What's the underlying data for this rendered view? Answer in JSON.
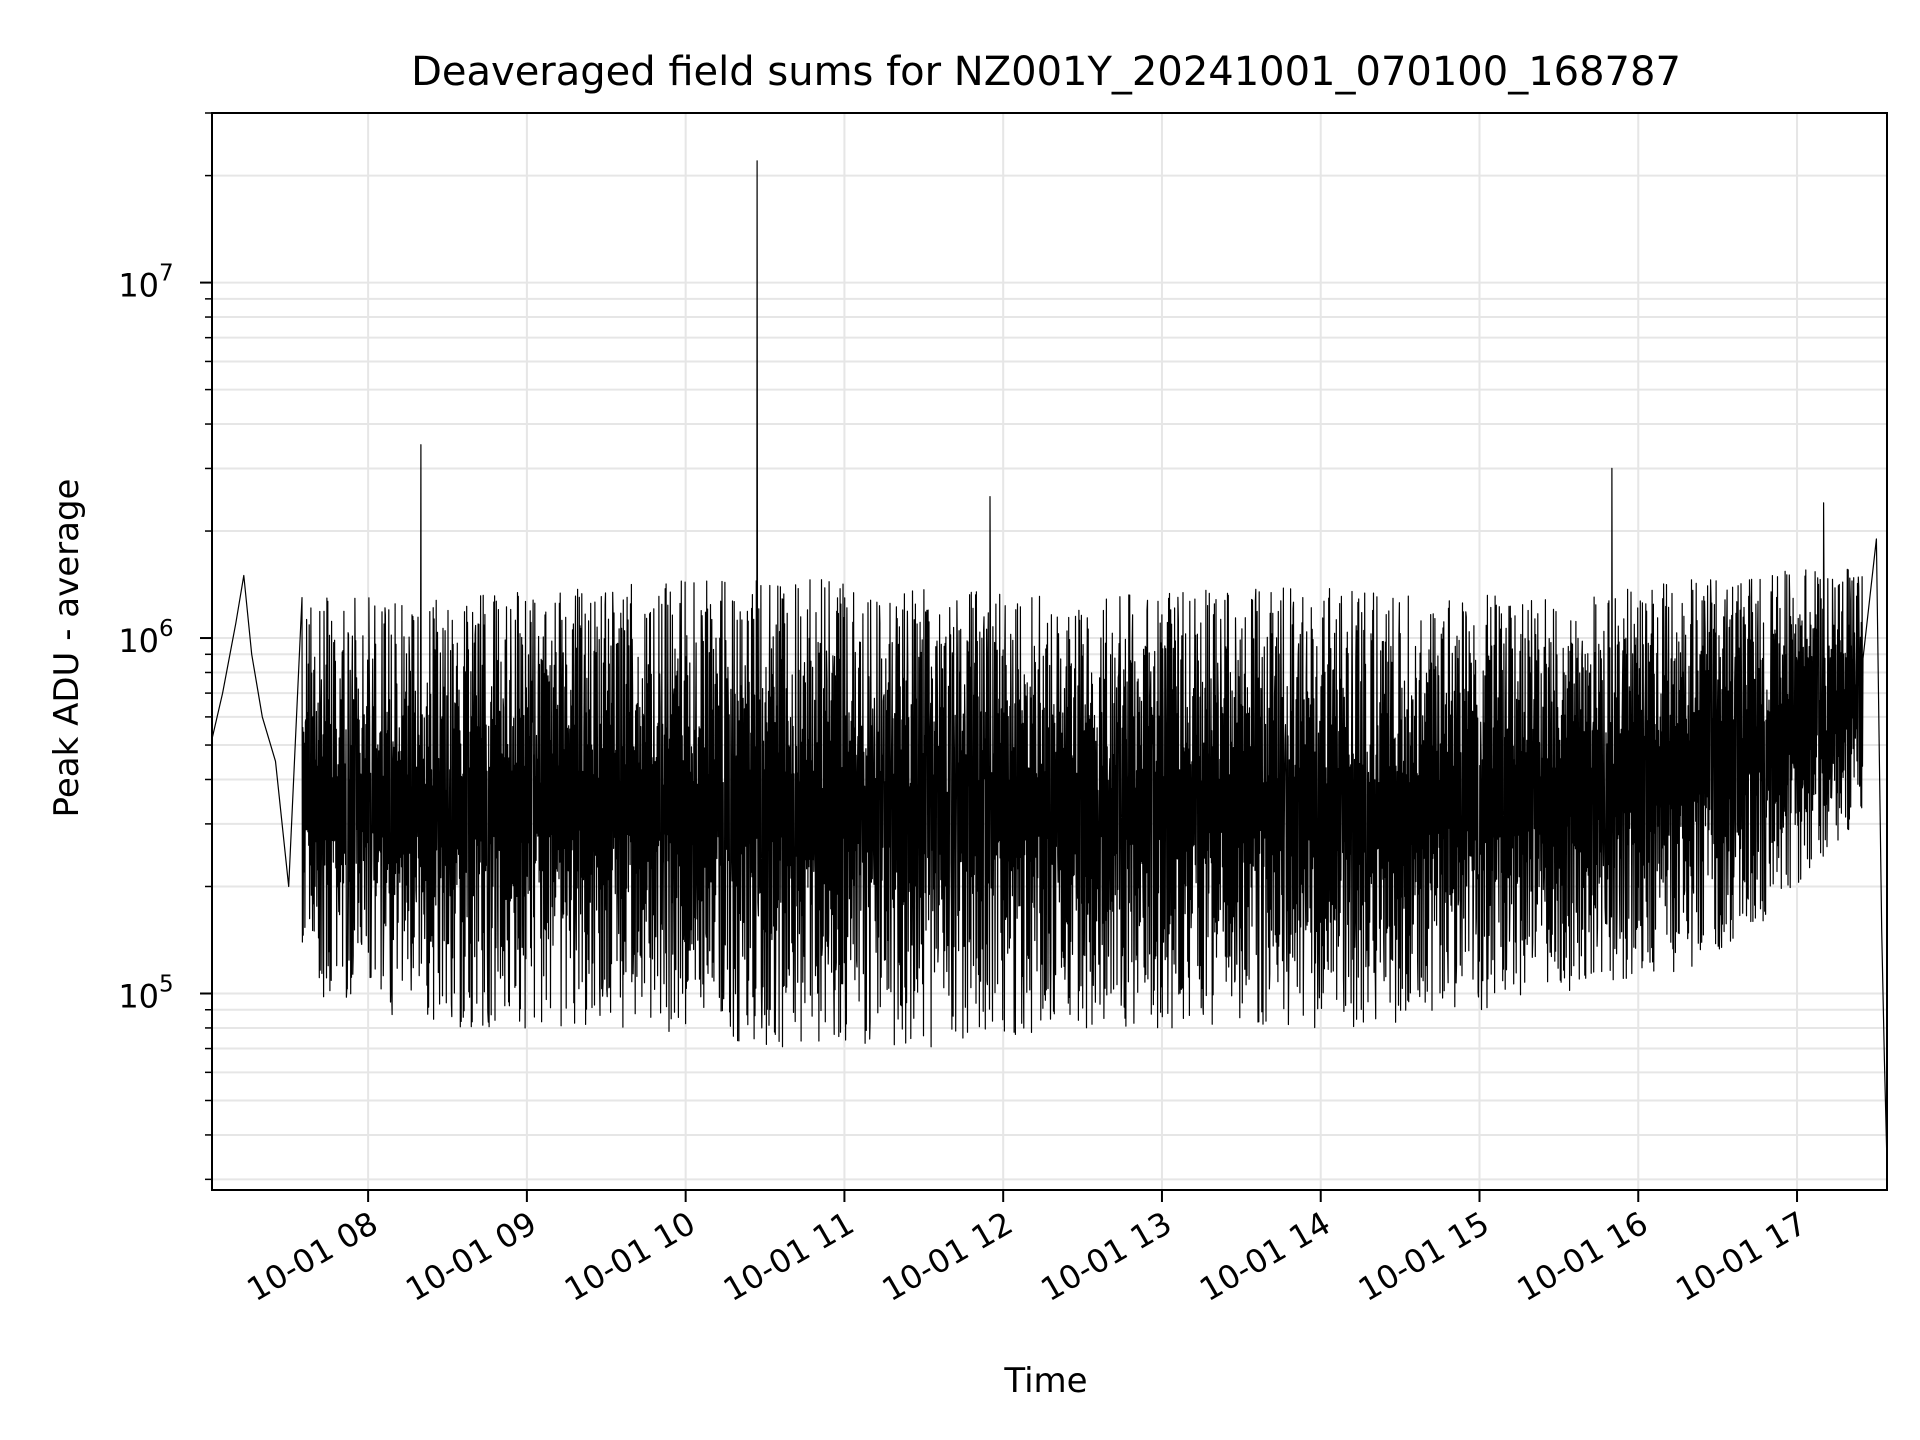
{
  "chart_data": {
    "type": "line",
    "title": "Deaveraged field sums for NZ001Y_20241001_070100_168787",
    "xlabel": "Time",
    "ylabel": "Peak ADU - average",
    "x_range": [
      "2024-10-01 07:01",
      "2024-10-01 17:34"
    ],
    "ylim": [
      28000,
      30000000
    ],
    "yscale": "log",
    "grid": true,
    "x_ticks": [
      {
        "t": "2024-10-01 08:00",
        "label": "10-01 08"
      },
      {
        "t": "2024-10-01 09:00",
        "label": "10-01 09"
      },
      {
        "t": "2024-10-01 10:00",
        "label": "10-01 10"
      },
      {
        "t": "2024-10-01 11:00",
        "label": "10-01 11"
      },
      {
        "t": "2024-10-01 12:00",
        "label": "10-01 12"
      },
      {
        "t": "2024-10-01 13:00",
        "label": "10-01 13"
      },
      {
        "t": "2024-10-01 14:00",
        "label": "10-01 14"
      },
      {
        "t": "2024-10-01 15:00",
        "label": "10-01 15"
      },
      {
        "t": "2024-10-01 16:00",
        "label": "10-01 16"
      },
      {
        "t": "2024-10-01 17:00",
        "label": "10-01 17"
      }
    ],
    "y_ticks": [
      {
        "v": 100000,
        "base": "10",
        "exp": "5"
      },
      {
        "v": 1000000,
        "base": "10",
        "exp": "6"
      },
      {
        "v": 10000000,
        "base": "10",
        "exp": "7"
      }
    ],
    "series": [
      {
        "color": "#000000",
        "points": [
          [
            "2024-10-01 07:01",
            520000
          ],
          [
            "2024-10-01 07:05",
            700000
          ],
          [
            "2024-10-01 07:10",
            1100000
          ],
          [
            "2024-10-01 07:13",
            1500000
          ],
          [
            "2024-10-01 07:16",
            900000
          ],
          [
            "2024-10-01 07:20",
            600000
          ],
          [
            "2024-10-01 07:25",
            450000
          ],
          [
            "2024-10-01 07:30",
            200000
          ],
          [
            "2024-10-01 08:20",
            3500000
          ],
          [
            "2024-10-01 10:27",
            22000000
          ],
          [
            "2024-10-01 11:55",
            2500000
          ],
          [
            "2024-10-01 15:50",
            3000000
          ],
          [
            "2024-10-01 17:10",
            2400000
          ],
          [
            "2024-10-01 17:30",
            1900000
          ],
          [
            "2024-10-01 17:32",
            150000
          ],
          [
            "2024-10-01 17:33",
            65000
          ],
          [
            "2024-10-01 17:34",
            33000
          ]
        ],
        "envelope": [
          [
            "2024-10-01 07:35",
            100000,
            1300000
          ],
          [
            "2024-10-01 08:30",
            80000,
            1300000
          ],
          [
            "2024-10-01 09:30",
            80000,
            1400000
          ],
          [
            "2024-10-01 10:30",
            70000,
            1500000
          ],
          [
            "2024-10-01 11:30",
            70000,
            1400000
          ],
          [
            "2024-10-01 12:30",
            80000,
            1300000
          ],
          [
            "2024-10-01 13:30",
            80000,
            1400000
          ],
          [
            "2024-10-01 14:30",
            80000,
            1400000
          ],
          [
            "2024-10-01 15:30",
            100000,
            1300000
          ],
          [
            "2024-10-01 16:30",
            120000,
            1500000
          ],
          [
            "2024-10-01 17:25",
            300000,
            1600000
          ]
        ]
      }
    ]
  }
}
